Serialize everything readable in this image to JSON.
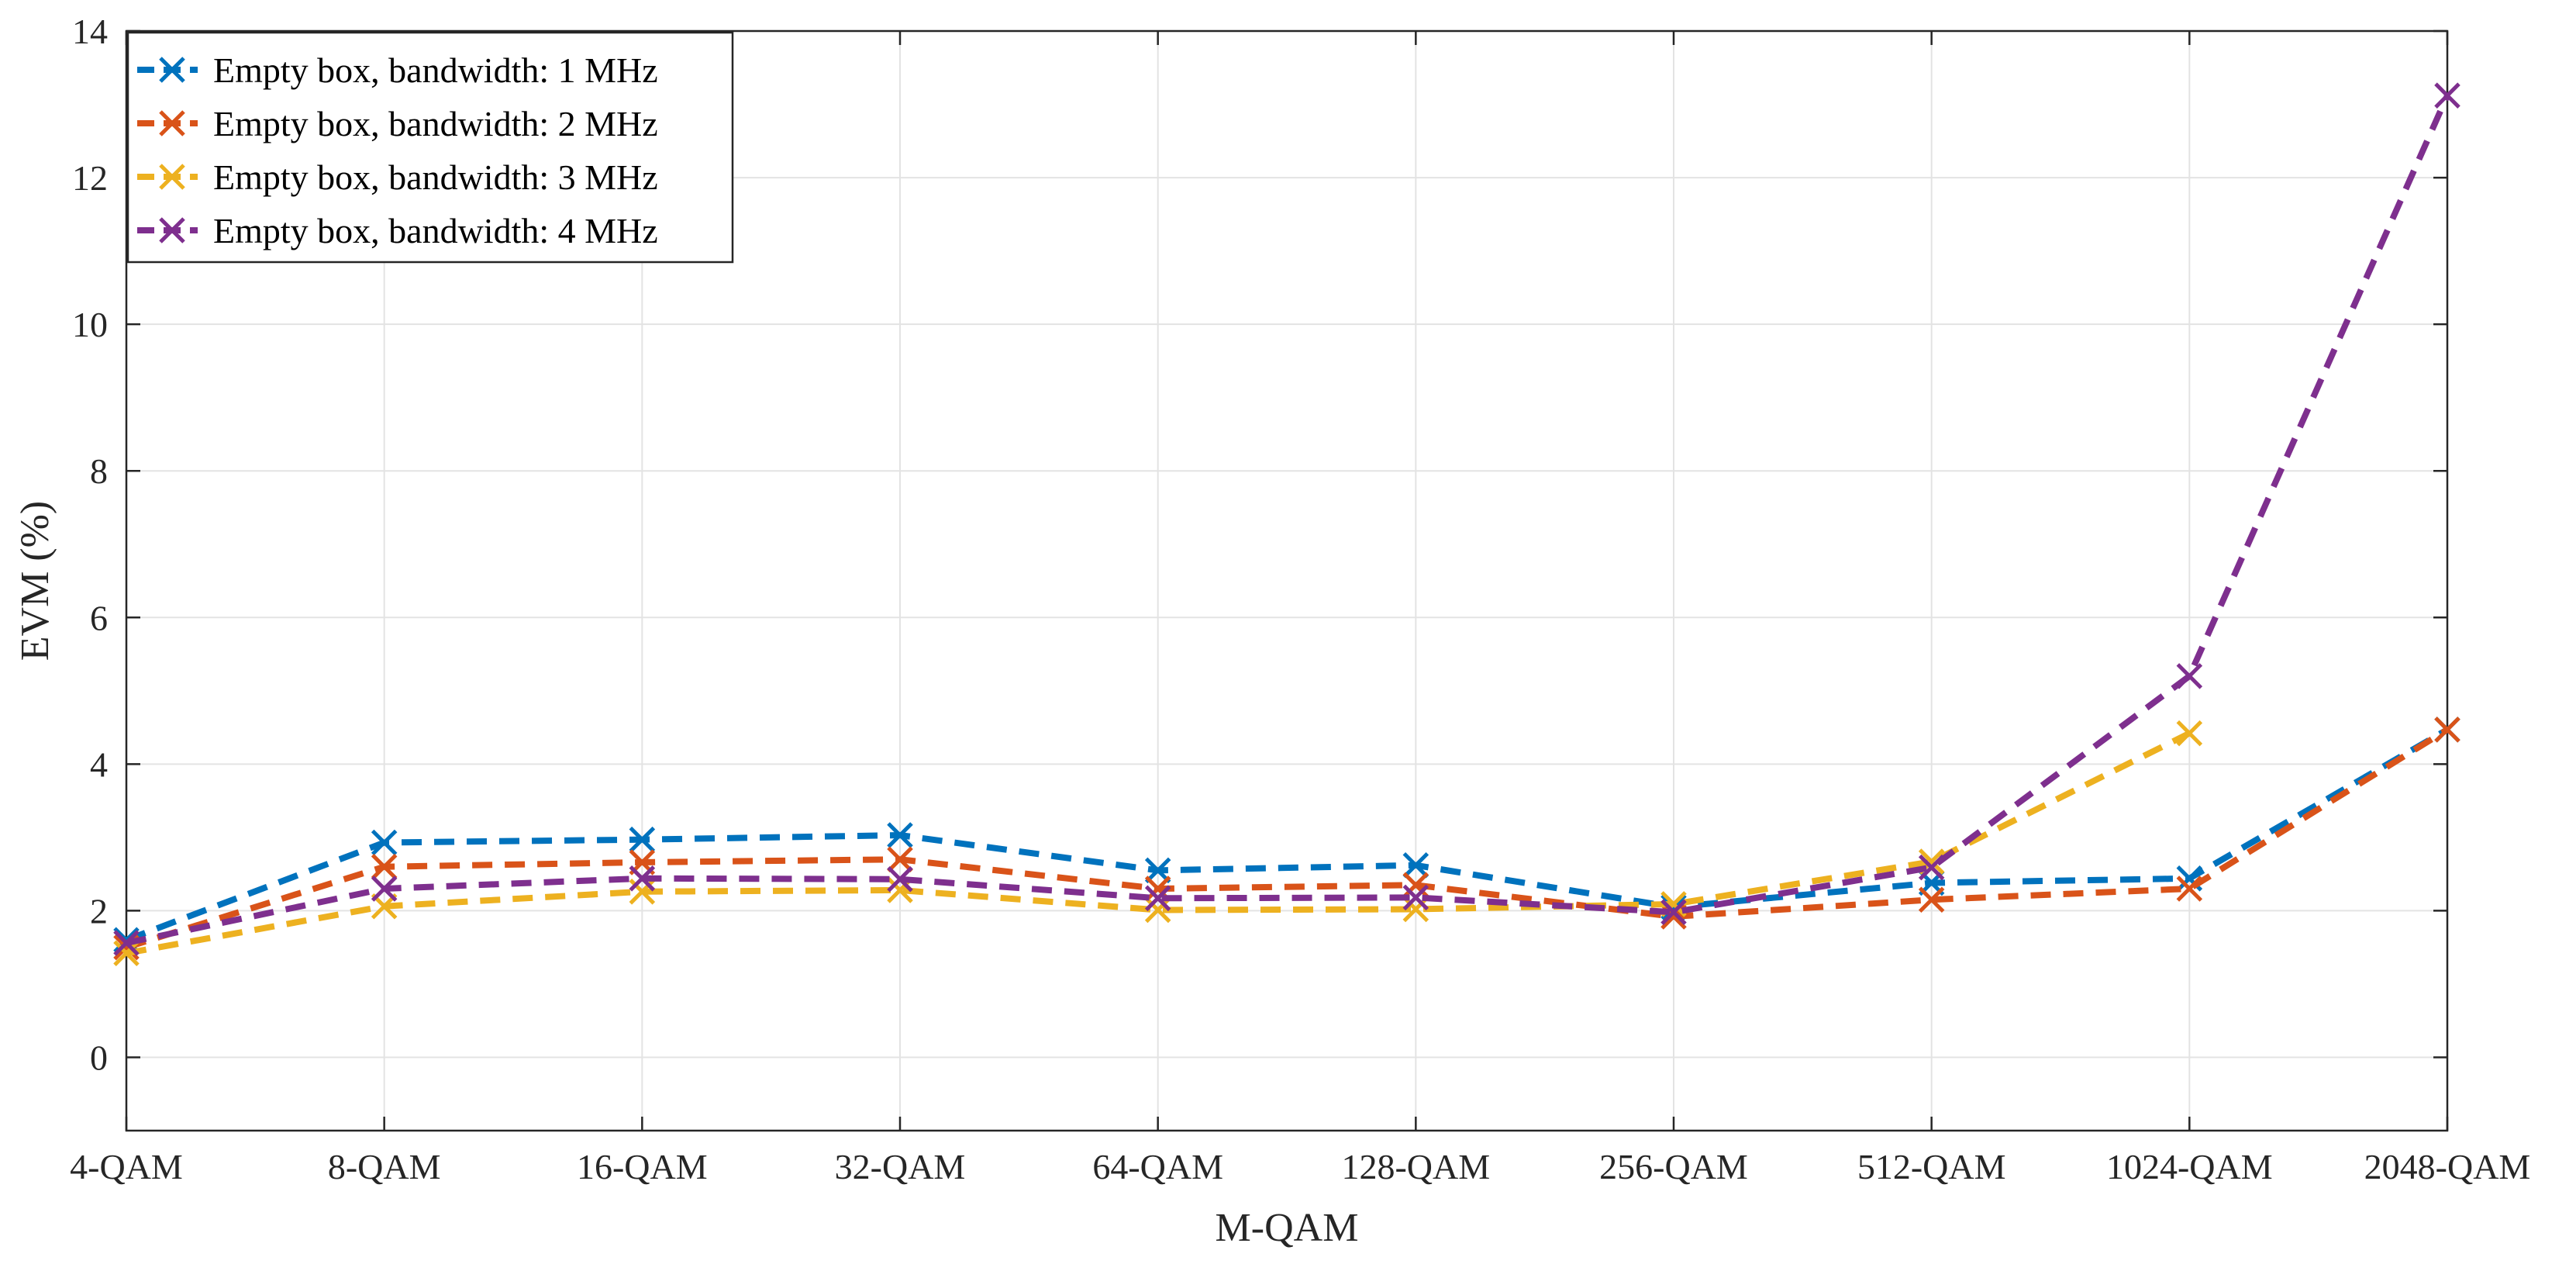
{
  "chart_data": {
    "type": "line",
    "title": "",
    "xlabel": "M-QAM",
    "ylabel": "EVM (%)",
    "categories": [
      "4-QAM",
      "8-QAM",
      "16-QAM",
      "32-QAM",
      "64-QAM",
      "128-QAM",
      "256-QAM",
      "512-QAM",
      "1024-QAM",
      "2048-QAM"
    ],
    "ylim": [
      -1,
      14
    ],
    "yticks": [
      0,
      2,
      4,
      6,
      8,
      10,
      12,
      14
    ],
    "grid": true,
    "legend_position": "top-left",
    "line_style": "dashed",
    "marker": "x",
    "series": [
      {
        "name": "Empty box, bandwidth: 1 MHz",
        "color": "#0072BD",
        "values": [
          1.6,
          2.93,
          2.97,
          3.03,
          2.55,
          2.62,
          2.05,
          2.38,
          2.44,
          4.47
        ]
      },
      {
        "name": "Empty box, bandwidth: 2 MHz",
        "color": "#D95319",
        "values": [
          1.5,
          2.6,
          2.66,
          2.7,
          2.3,
          2.35,
          1.92,
          2.15,
          2.3,
          4.47
        ]
      },
      {
        "name": "Empty box, bandwidth: 3 MHz",
        "color": "#EDB120",
        "values": [
          1.42,
          2.06,
          2.26,
          2.28,
          2.01,
          2.02,
          2.09,
          2.67,
          4.42,
          null
        ]
      },
      {
        "name": "Empty box, bandwidth: 4 MHz",
        "color": "#7E2F8E",
        "values": [
          1.56,
          2.3,
          2.44,
          2.43,
          2.17,
          2.18,
          1.98,
          2.59,
          5.2,
          13.12
        ]
      }
    ]
  }
}
